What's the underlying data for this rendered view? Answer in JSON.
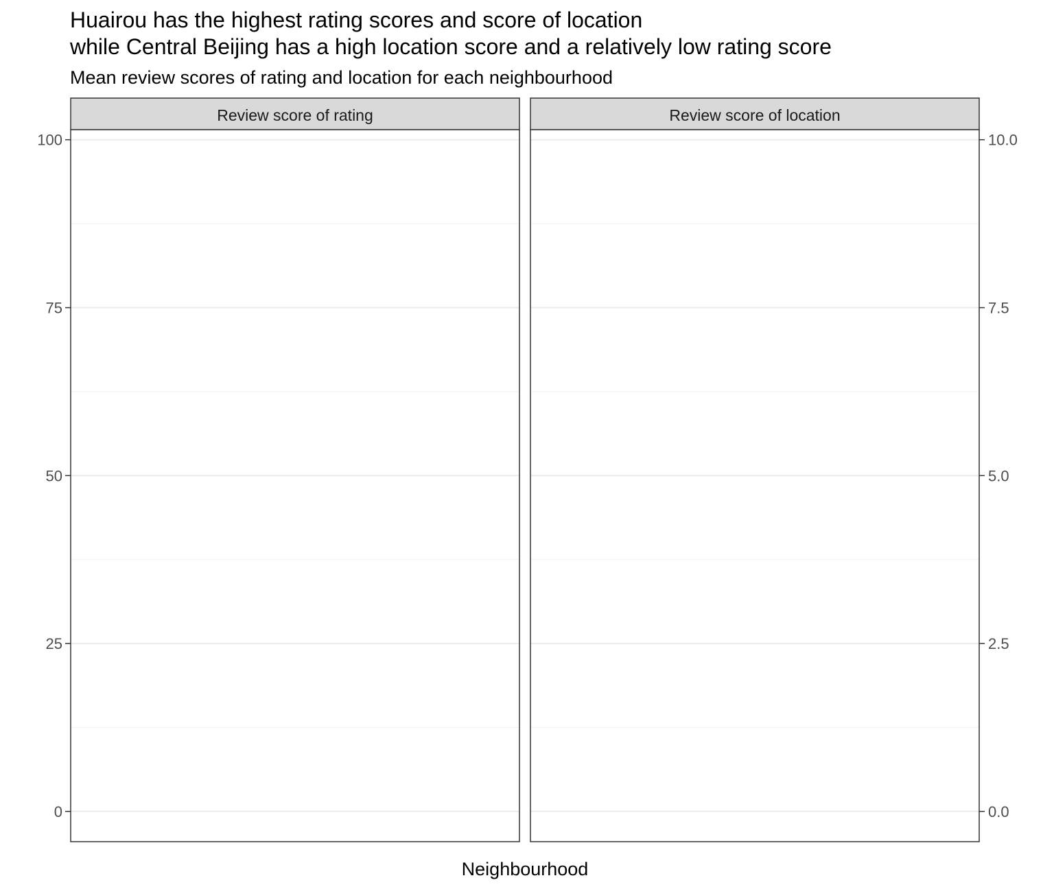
{
  "chart_data": {
    "type": "bar",
    "title": "Huairou has the highest rating scores and score of location\nwhile Central Beijing has a high location score and a relatively low rating score",
    "title_lines": [
      "Huairou has the highest rating scores and score of location",
      "while Central Beijing has a high location score and a relatively low rating score"
    ],
    "subtitle": "Mean review scores of rating and location for each neighbourhood",
    "xlabel": "Neighbourhood",
    "categories": [],
    "grid": true,
    "panels": [
      {
        "strip_label": "Review score of rating",
        "axis_side": "left",
        "ylim": [
          -4.5,
          101.5
        ],
        "y_ticks": [
          0,
          25,
          50,
          75,
          100
        ],
        "y_tick_labels": [
          "0",
          "25",
          "50",
          "75",
          "100"
        ],
        "y_minor_ticks": [
          12.5,
          37.5,
          62.5,
          87.5
        ],
        "values": []
      },
      {
        "strip_label": "Review score of location",
        "axis_side": "right",
        "ylim": [
          -0.45,
          10.15
        ],
        "y_ticks": [
          0,
          2.5,
          5,
          7.5,
          10
        ],
        "y_tick_labels": [
          "0.0",
          "2.5",
          "5.0",
          "7.5",
          "10.0"
        ],
        "y_minor_ticks": [
          1.25,
          3.75,
          6.25,
          8.75
        ],
        "values": []
      }
    ],
    "colors": {
      "strip_fill": "#d9d9d9",
      "panel_border": "#333333",
      "grid_major": "#ebebeb",
      "grid_minor": "#f2f2f2",
      "tick_label": "#4d4d4d",
      "text": "#000000"
    }
  }
}
